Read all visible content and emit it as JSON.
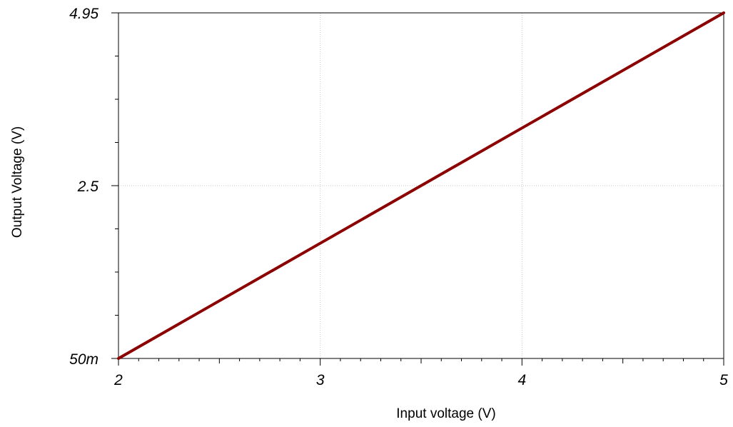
{
  "chart_data": {
    "type": "line",
    "title": "",
    "xlabel": "Input voltage (V)",
    "ylabel": "Output Voltage (V)",
    "xlim": [
      2,
      5
    ],
    "ylim": [
      0.05,
      4.95
    ],
    "grid": true,
    "x_ticks": [
      {
        "value": 2,
        "label": "2"
      },
      {
        "value": 3,
        "label": "3"
      },
      {
        "value": 4,
        "label": "4"
      },
      {
        "value": 5,
        "label": "5"
      }
    ],
    "y_ticks": [
      {
        "value": 0.05,
        "label": "50m"
      },
      {
        "value": 2.5,
        "label": "2.5"
      },
      {
        "value": 4.95,
        "label": "4.95"
      }
    ],
    "series": [
      {
        "color": "#8b0000",
        "x": [
          2,
          2.5,
          3,
          3.5,
          4,
          4.5,
          5
        ],
        "y": [
          0.05,
          0.867,
          1.683,
          2.5,
          3.317,
          4.133,
          4.95
        ]
      }
    ]
  }
}
